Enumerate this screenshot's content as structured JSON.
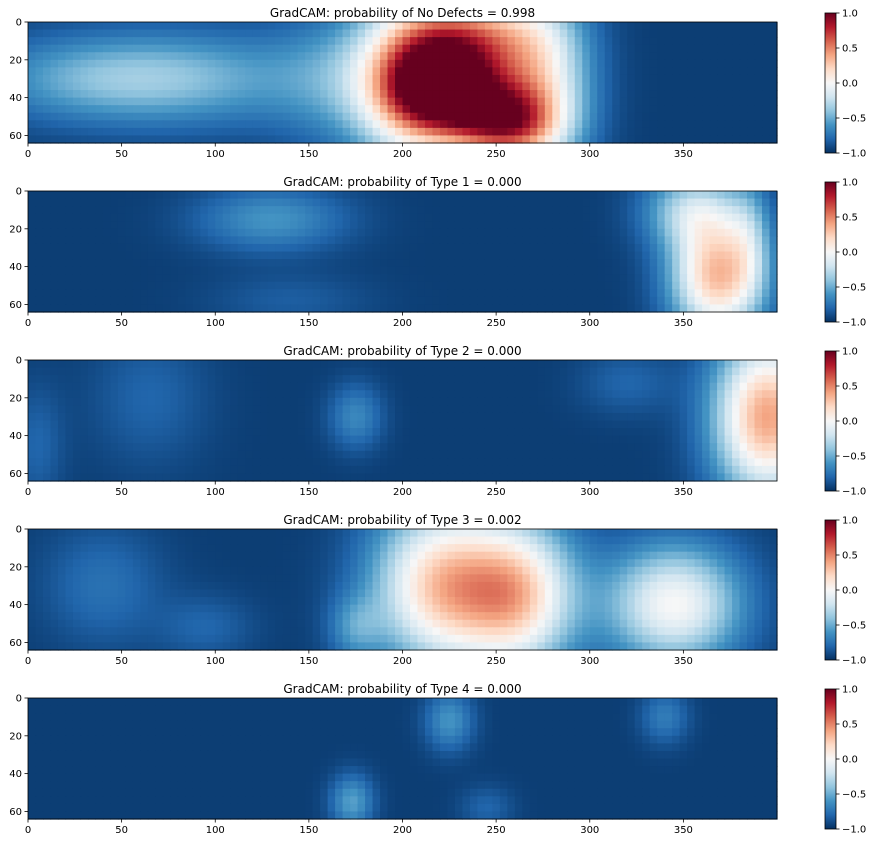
{
  "chart_data": [
    {
      "type": "heatmap",
      "title": "GradCAM: probability of No Defects = 0.998",
      "xlim": [
        0,
        400
      ],
      "ylim": [
        64,
        0
      ],
      "xticks": [
        "0",
        "50",
        "100",
        "150",
        "200",
        "250",
        "300",
        "350"
      ],
      "yticks": [
        "0",
        "20",
        "40",
        "60"
      ],
      "colormap": "RdBu_r",
      "clim": [
        -1.0,
        1.0
      ],
      "colorbar_ticks": [
        "1.0",
        "0.5",
        "0.0",
        "−0.5",
        "−1.0"
      ],
      "background": -0.95,
      "blobs": [
        {
          "x": 40,
          "y": 30,
          "sx": 45,
          "sy": 16,
          "v": 0.45
        },
        {
          "x": 100,
          "y": 30,
          "sx": 45,
          "sy": 18,
          "v": 0.3
        },
        {
          "x": 160,
          "y": 30,
          "sx": 22,
          "sy": 25,
          "v": 0.25
        },
        {
          "x": 205,
          "y": 30,
          "sx": 22,
          "sy": 30,
          "v": 1.2
        },
        {
          "x": 240,
          "y": 5,
          "sx": 25,
          "sy": 15,
          "v": 0.9
        },
        {
          "x": 228,
          "y": 35,
          "sx": 24,
          "sy": 18,
          "v": 1.6
        },
        {
          "x": 255,
          "y": 55,
          "sx": 20,
          "sy": 14,
          "v": 1.2
        },
        {
          "x": 275,
          "y": 30,
          "sx": 18,
          "sy": 30,
          "v": 0.8
        }
      ]
    },
    {
      "type": "heatmap",
      "title": "GradCAM: probability of Type 1 = 0.000",
      "xlim": [
        0,
        400
      ],
      "ylim": [
        64,
        0
      ],
      "xticks": [
        "0",
        "50",
        "100",
        "150",
        "200",
        "250",
        "300",
        "350"
      ],
      "yticks": [
        "0",
        "20",
        "40",
        "60"
      ],
      "colormap": "RdBu_r",
      "clim": [
        -1.0,
        1.0
      ],
      "colorbar_ticks": [
        "1.0",
        "0.5",
        "0.0",
        "−0.5",
        "−1.0"
      ],
      "background": -0.95,
      "blobs": [
        {
          "x": 130,
          "y": 15,
          "sx": 28,
          "sy": 12,
          "v": 0.35
        },
        {
          "x": 140,
          "y": 58,
          "sx": 30,
          "sy": 10,
          "v": 0.12
        },
        {
          "x": 355,
          "y": 10,
          "sx": 18,
          "sy": 14,
          "v": 0.6
        },
        {
          "x": 368,
          "y": 45,
          "sx": 17,
          "sy": 22,
          "v": 1.25
        },
        {
          "x": 385,
          "y": 25,
          "sx": 8,
          "sy": 22,
          "v": 0.3
        }
      ]
    },
    {
      "type": "heatmap",
      "title": "GradCAM: probability of Type 2 = 0.000",
      "xlim": [
        0,
        400
      ],
      "ylim": [
        64,
        0
      ],
      "xticks": [
        "0",
        "50",
        "100",
        "150",
        "200",
        "250",
        "300",
        "350"
      ],
      "yticks": [
        "0",
        "20",
        "40",
        "60"
      ],
      "colormap": "RdBu_r",
      "clim": [
        -1.0,
        1.0
      ],
      "colorbar_ticks": [
        "1.0",
        "0.5",
        "0.0",
        "−0.5",
        "−1.0"
      ],
      "background": -0.95,
      "blobs": [
        {
          "x": 65,
          "y": 20,
          "sx": 22,
          "sy": 25,
          "v": 0.15
        },
        {
          "x": 175,
          "y": 30,
          "sx": 10,
          "sy": 12,
          "v": 0.3
        },
        {
          "x": 320,
          "y": 12,
          "sx": 18,
          "sy": 12,
          "v": 0.15
        },
        {
          "x": 395,
          "y": 30,
          "sx": 20,
          "sy": 30,
          "v": 1.35
        },
        {
          "x": 5,
          "y": 45,
          "sx": 10,
          "sy": 22,
          "v": 0.15
        }
      ]
    },
    {
      "type": "heatmap",
      "title": "GradCAM: probability of Type 3 = 0.002",
      "xlim": [
        0,
        400
      ],
      "ylim": [
        64,
        0
      ],
      "xticks": [
        "0",
        "50",
        "100",
        "150",
        "200",
        "250",
        "300",
        "350"
      ],
      "yticks": [
        "0",
        "20",
        "40",
        "60"
      ],
      "colormap": "RdBu_r",
      "clim": [
        -1.0,
        1.0
      ],
      "colorbar_ticks": [
        "1.0",
        "0.5",
        "0.0",
        "−0.5",
        "−1.0"
      ],
      "background": -0.95,
      "blobs": [
        {
          "x": 40,
          "y": 30,
          "sx": 22,
          "sy": 22,
          "v": 0.2
        },
        {
          "x": 95,
          "y": 52,
          "sx": 18,
          "sy": 12,
          "v": 0.15
        },
        {
          "x": 175,
          "y": 52,
          "sx": 10,
          "sy": 12,
          "v": 0.3
        },
        {
          "x": 220,
          "y": 30,
          "sx": 25,
          "sy": 30,
          "v": 1.15
        },
        {
          "x": 262,
          "y": 35,
          "sx": 22,
          "sy": 28,
          "v": 1.1
        },
        {
          "x": 345,
          "y": 40,
          "sx": 25,
          "sy": 22,
          "v": 0.95
        }
      ]
    },
    {
      "type": "heatmap",
      "title": "GradCAM: probability of Type 4 = 0.000",
      "xlim": [
        0,
        400
      ],
      "ylim": [
        64,
        0
      ],
      "xticks": [
        "0",
        "50",
        "100",
        "150",
        "200",
        "250",
        "300",
        "350"
      ],
      "yticks": [
        "0",
        "20",
        "40",
        "60"
      ],
      "colormap": "RdBu_r",
      "clim": [
        -1.0,
        1.0
      ],
      "colorbar_ticks": [
        "1.0",
        "0.5",
        "0.0",
        "−0.5",
        "−1.0"
      ],
      "background": -0.95,
      "blobs": [
        {
          "x": 225,
          "y": 12,
          "sx": 9,
          "sy": 11,
          "v": 0.35
        },
        {
          "x": 340,
          "y": 10,
          "sx": 9,
          "sy": 10,
          "v": 0.25
        },
        {
          "x": 173,
          "y": 55,
          "sx": 8,
          "sy": 10,
          "v": 0.4
        },
        {
          "x": 245,
          "y": 58,
          "sx": 10,
          "sy": 8,
          "v": 0.15
        }
      ]
    }
  ]
}
